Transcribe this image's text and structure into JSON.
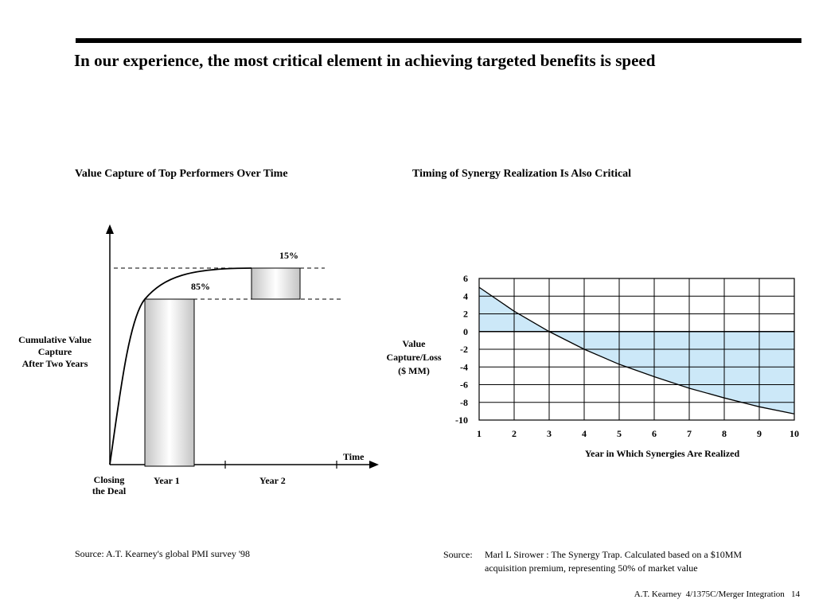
{
  "title": "In our experience, the most critical element in achieving targeted benefits is speed",
  "left_chart": {
    "subtitle": "Value Capture of Top Performers Over Time",
    "pct_top": "15%",
    "pct_bottom": "85%",
    "y_label_lines": [
      "Cumulative Value",
      "Capture",
      "After Two Years"
    ],
    "x_axis_label": "Time",
    "closing_lines": [
      "Closing",
      "the Deal"
    ],
    "year1": "Year 1",
    "year2": "Year 2"
  },
  "right_chart": {
    "subtitle": "Timing of Synergy Realization Is Also Critical",
    "y_label_lines": [
      "Value",
      "Capture/Loss",
      "($ MM)"
    ],
    "x_axis_label": "Year in Which Synergies Are Realized"
  },
  "chart_data": [
    {
      "type": "bar",
      "title": "Value Capture of Top Performers Over Time",
      "categories": [
        "Year 1",
        "Year 2"
      ],
      "values": [
        85,
        15
      ],
      "value_labels": [
        "85%",
        "15%"
      ],
      "xlabel": "Time",
      "ylabel": "Cumulative Value Capture After Two Years"
    },
    {
      "type": "area",
      "title": "Timing of Synergy Realization Is Also Critical",
      "x": [
        1,
        2,
        3,
        4,
        5,
        6,
        7,
        8,
        9,
        10
      ],
      "y": [
        5.0,
        2.3,
        0.0,
        -2.0,
        -3.7,
        -5.1,
        -6.4,
        -7.5,
        -8.5,
        -9.3
      ],
      "xlabel": "Year in Which Synergies Are Realized",
      "ylabel": "Value Capture/Loss ($ MM)",
      "xlim": [
        1,
        10
      ],
      "ylim": [
        -10,
        6
      ],
      "yticks": [
        6,
        4,
        2,
        0,
        -2,
        -4,
        -6,
        -8,
        -10
      ],
      "grid": true,
      "fill_color": "#cce8f8"
    }
  ],
  "sources": {
    "left": "Source: A.T. Kearney's global PMI survey '98",
    "right_label": "Source:",
    "right_lines": [
      "Marl L Sirower : The Synergy Trap.  Calculated based on a $10MM",
      "acquisition premium, representing 50% of market value"
    ]
  },
  "footer": "A.T. Kearney  4/1375C/Merger Integration   14"
}
